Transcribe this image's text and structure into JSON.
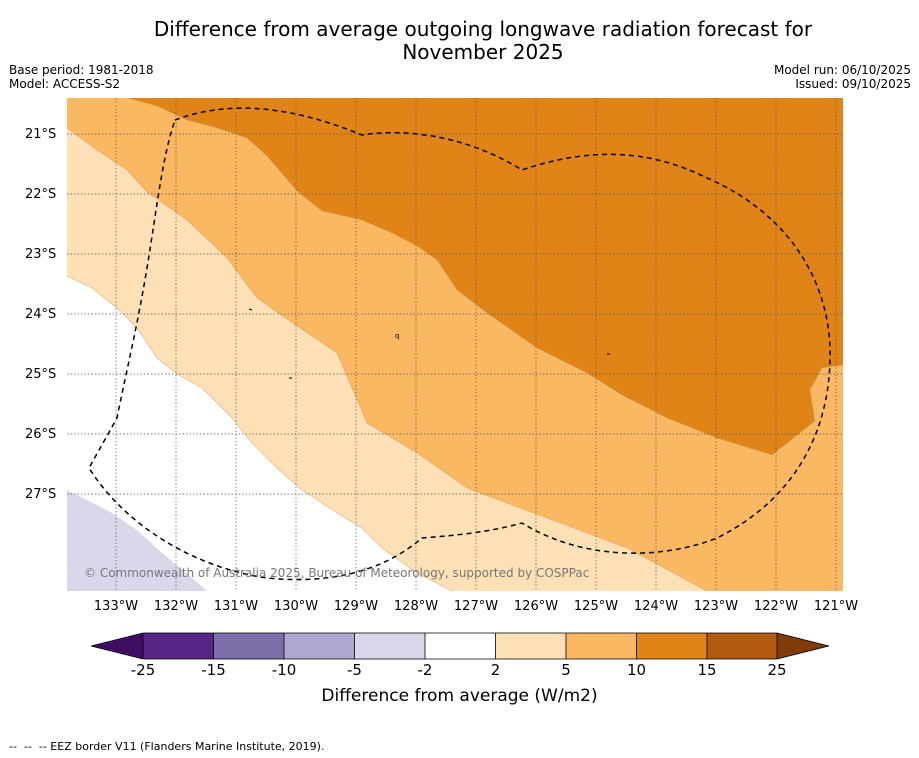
{
  "title": "Difference from average outgoing longwave radiation forecast for\nNovember 2025",
  "title_line1": "Difference from average outgoing longwave radiation forecast for",
  "title_line2": "November 2025",
  "meta_left": {
    "base_period": "Base period: 1981-2018",
    "model": "Model: ACCESS-S2"
  },
  "meta_right": {
    "model_run": "Model run: 06/10/2025",
    "issued": "Issued: 09/10/2025"
  },
  "map": {
    "copyright": "© Commonwealth of Australia 2025, Bureau of Meteorology, supported by COSPPac",
    "lat_labels": [
      "21°S",
      "22°S",
      "23°S",
      "24°S",
      "25°S",
      "26°S",
      "27°S"
    ],
    "lon_labels": [
      "133°W",
      "132°W",
      "131°W",
      "130°W",
      "129°W",
      "128°W",
      "127°W",
      "126°W",
      "125°W",
      "124°W",
      "123°W",
      "122°W",
      "121°W"
    ],
    "contour_levels": {
      "level_2_5": "#fde0b5",
      "level_5_10": "#fbb863",
      "level_10_15": "#e08418",
      "level_neg5_neg2": "#d8d8ea",
      "level_neg2_2": "#ffffff"
    },
    "eez_border_style": "dashed"
  },
  "colorbar": {
    "label": "Difference from average (W/m2)",
    "ticks": [
      "-25",
      "-15",
      "-10",
      "-5",
      "-2",
      "2",
      "5",
      "10",
      "15",
      "25"
    ],
    "colors": [
      "#3f0d63",
      "#562586",
      "#7d6fa9",
      "#b1a8d1",
      "#d8d8ea",
      "#ffffff",
      "#fde0b5",
      "#fbb863",
      "#e08418",
      "#b05b0e",
      "#7f3b08"
    ]
  },
  "footer": "--  --  -- EEZ border V11 (Flanders Marine Institute, 2019)."
}
